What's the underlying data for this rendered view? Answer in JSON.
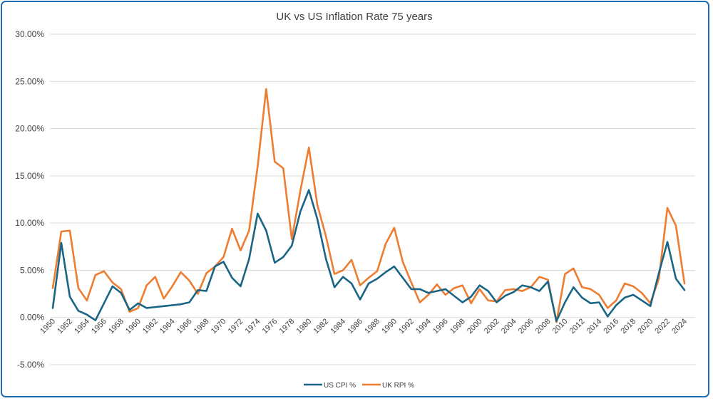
{
  "chart_data": {
    "type": "line",
    "title": "UK vs US Inflation Rate 75 years",
    "xlabel": "",
    "ylabel": "",
    "ylim": [
      -0.05,
      0.3
    ],
    "y_ticks": [
      -0.05,
      0,
      0.05,
      0.1,
      0.15,
      0.2,
      0.25,
      0.3
    ],
    "y_tick_labels": [
      "-5.00%",
      "0.00%",
      "5.00%",
      "10.00%",
      "15.00%",
      "20.00%",
      "25.00%",
      "30.00%"
    ],
    "x_tick_labels": [
      "1950",
      "1952",
      "1954",
      "1956",
      "1958",
      "1960",
      "1962",
      "1964",
      "1966",
      "1968",
      "1970",
      "1972",
      "1974",
      "1976",
      "1978",
      "1980",
      "1982",
      "1984",
      "1986",
      "1988",
      "1990",
      "1992",
      "1994",
      "1996",
      "1998",
      "2000",
      "2002",
      "2004",
      "2006",
      "2008",
      "2010",
      "2012",
      "2014",
      "2016",
      "2018",
      "2020",
      "2022",
      "2024"
    ],
    "x": [
      1950,
      1951,
      1952,
      1953,
      1954,
      1955,
      1956,
      1957,
      1958,
      1959,
      1960,
      1961,
      1962,
      1963,
      1964,
      1965,
      1966,
      1967,
      1968,
      1969,
      1970,
      1971,
      1972,
      1973,
      1974,
      1975,
      1976,
      1977,
      1978,
      1979,
      1980,
      1981,
      1982,
      1983,
      1984,
      1985,
      1986,
      1987,
      1988,
      1989,
      1990,
      1991,
      1992,
      1993,
      1994,
      1995,
      1996,
      1997,
      1998,
      1999,
      2000,
      2001,
      2002,
      2003,
      2004,
      2005,
      2006,
      2007,
      2008,
      2009,
      2010,
      2011,
      2012,
      2013,
      2014,
      2015,
      2016,
      2017,
      2018,
      2019,
      2020,
      2021,
      2022,
      2023,
      2024
    ],
    "series": [
      {
        "name": "US CPI %",
        "color": "#1a6585",
        "values": [
          0.01,
          0.079,
          0.022,
          0.007,
          0.003,
          -0.003,
          0.015,
          0.033,
          0.026,
          0.008,
          0.015,
          0.01,
          0.011,
          0.012,
          0.013,
          0.014,
          0.016,
          0.029,
          0.028,
          0.054,
          0.059,
          0.042,
          0.033,
          0.062,
          0.11,
          0.092,
          0.058,
          0.064,
          0.076,
          0.112,
          0.135,
          0.104,
          0.062,
          0.032,
          0.043,
          0.036,
          0.019,
          0.036,
          0.041,
          0.048,
          0.054,
          0.042,
          0.03,
          0.03,
          0.026,
          0.028,
          0.03,
          0.023,
          0.016,
          0.022,
          0.034,
          0.028,
          0.016,
          0.023,
          0.027,
          0.034,
          0.032,
          0.028,
          0.038,
          -0.004,
          0.016,
          0.032,
          0.021,
          0.015,
          0.016,
          0.001,
          0.013,
          0.021,
          0.024,
          0.018,
          0.012,
          0.047,
          0.08,
          0.041,
          0.029
        ]
      },
      {
        "name": "UK RPI %",
        "color": "#ee7d31",
        "values": [
          0.031,
          0.091,
          0.092,
          0.031,
          0.018,
          0.045,
          0.049,
          0.037,
          0.03,
          0.006,
          0.01,
          0.034,
          0.043,
          0.02,
          0.033,
          0.048,
          0.039,
          0.025,
          0.047,
          0.054,
          0.064,
          0.094,
          0.071,
          0.092,
          0.16,
          0.242,
          0.165,
          0.158,
          0.083,
          0.134,
          0.18,
          0.119,
          0.086,
          0.046,
          0.05,
          0.061,
          0.034,
          0.042,
          0.049,
          0.078,
          0.095,
          0.059,
          0.037,
          0.016,
          0.024,
          0.035,
          0.024,
          0.031,
          0.034,
          0.015,
          0.03,
          0.018,
          0.017,
          0.029,
          0.03,
          0.028,
          0.032,
          0.043,
          0.04,
          -0.005,
          0.046,
          0.052,
          0.032,
          0.03,
          0.024,
          0.01,
          0.018,
          0.036,
          0.033,
          0.026,
          0.015,
          0.041,
          0.116,
          0.097,
          0.036
        ]
      }
    ],
    "legend_position": "bottom",
    "grid": true
  }
}
